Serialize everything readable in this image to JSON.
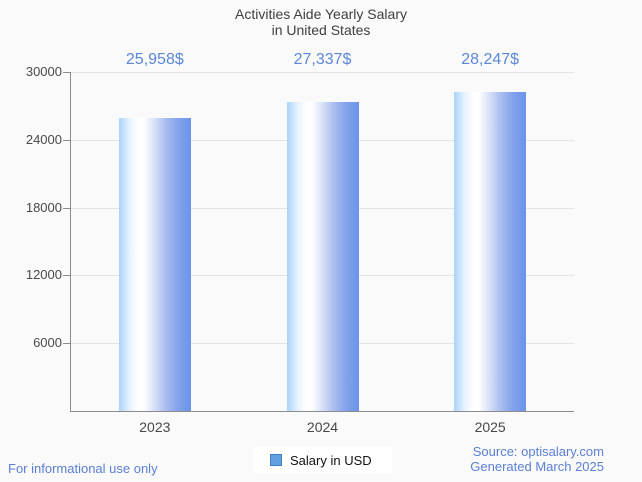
{
  "title": {
    "line1": "Activities Aide Yearly Salary",
    "line2": "in United States"
  },
  "chart_data": {
    "type": "bar",
    "title": "Activities Aide Yearly Salary in United States",
    "categories": [
      "2023",
      "2024",
      "2025"
    ],
    "values": [
      25958,
      27337,
      28247
    ],
    "value_labels": [
      "25,958$",
      "27,337$",
      "28,247$"
    ],
    "series": [
      {
        "name": "Salary in USD",
        "values": [
          25958,
          27337,
          28247
        ]
      }
    ],
    "xlabel": "",
    "ylabel": "",
    "ylim": [
      0,
      30000
    ],
    "ytick_labels": [
      "30000",
      "24000",
      "18000",
      "12000",
      "6000"
    ],
    "ytick_values": [
      30000,
      24000,
      18000,
      12000,
      6000
    ],
    "grid": true,
    "legend_position": "bottom"
  },
  "legend": {
    "label": "Salary in USD"
  },
  "footer": {
    "left_note": "For informational use only",
    "source": "Source: optisalary.com",
    "generated": "Generated March 2025"
  },
  "colors": {
    "background": "#fafafa",
    "bar_gradient_left": "#a9d4fc",
    "bar_gradient_mid": "#ffffff",
    "bar_gradient_right": "#6b93e8",
    "value_label_text": "#5b87d8",
    "axis_line": "#8c8c8c",
    "gridline": "#e3e3e3",
    "title_text": "#3f3f3f",
    "tick_text": "#4a4a4a",
    "footer_text": "#5b7fd4",
    "legend_swatch_fill": "#63a0e0",
    "legend_swatch_border": "#3d7fc1",
    "legend_background": "#ffffff"
  }
}
